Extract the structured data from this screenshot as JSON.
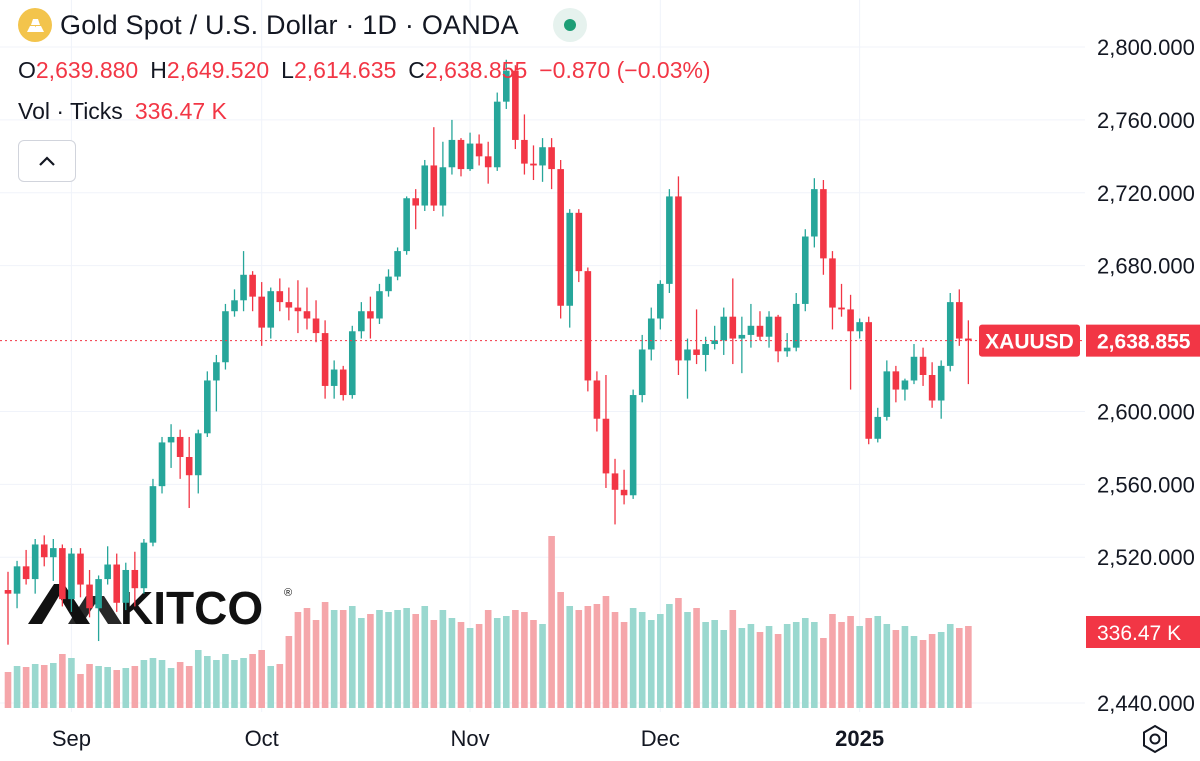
{
  "header": {
    "title": "Gold Spot / U.S. Dollar · 1D · OANDA",
    "ohlc": [
      {
        "key": "O",
        "value": "2,639.880"
      },
      {
        "key": "H",
        "value": "2,649.520"
      },
      {
        "key": "L",
        "value": "2,614.635"
      },
      {
        "key": "C",
        "value": "2,638.855"
      }
    ],
    "change": "−0.870 (−0.03%)",
    "volume_label": "Vol · Ticks",
    "volume_value": "336.47 K"
  },
  "price_label": {
    "symbol": "XAUUSD",
    "value": "2,638.855"
  },
  "volume_badge": "336.47 K",
  "watermark": "KITCO",
  "colors": {
    "up": "#26a69a",
    "down": "#f23645",
    "up_vol": "#9ad8cf",
    "down_vol": "#f5a6aa",
    "grid": "#f0f3fa",
    "text": "#131722"
  },
  "icons": {
    "collapse": "chevron-up-icon",
    "settings": "hexagon-gear-icon",
    "symbol": "gold-bars-icon",
    "market_status": "green-dot-icon"
  },
  "chart_data": {
    "type": "candlestick",
    "interval": "1D",
    "y_axis": {
      "ticks": [
        "2,800.000",
        "2,760.000",
        "2,720.000",
        "2,680.000",
        "2,600.000",
        "2,560.000",
        "2,520.000",
        "2,440.000"
      ],
      "tick_values": [
        2800,
        2760,
        2720,
        2680,
        2600,
        2560,
        2520,
        2440
      ],
      "range": [
        2435,
        2815
      ]
    },
    "x_axis": {
      "labels": [
        "Sep",
        "Oct",
        "Nov",
        "Dec",
        "2025"
      ],
      "label_bar_index": [
        7,
        28,
        51,
        72,
        94
      ]
    },
    "last_price": 2638.855,
    "candles": [
      [
        2502,
        2512,
        2472,
        2500,
        180,
        "d"
      ],
      [
        2500,
        2518,
        2492,
        2515,
        210,
        "u"
      ],
      [
        2515,
        2524,
        2505,
        2508,
        205,
        "d"
      ],
      [
        2508,
        2530,
        2500,
        2527,
        220,
        "u"
      ],
      [
        2527,
        2532,
        2515,
        2520,
        215,
        "d"
      ],
      [
        2520,
        2530,
        2507,
        2525,
        225,
        "u"
      ],
      [
        2525,
        2527,
        2493,
        2497,
        270,
        "d"
      ],
      [
        2497,
        2525,
        2490,
        2522,
        250,
        "u"
      ],
      [
        2522,
        2525,
        2498,
        2505,
        170,
        "d"
      ],
      [
        2505,
        2513,
        2487,
        2492,
        220,
        "d"
      ],
      [
        2492,
        2510,
        2474,
        2508,
        210,
        "u"
      ],
      [
        2508,
        2526,
        2505,
        2516,
        205,
        "u"
      ],
      [
        2516,
        2522,
        2490,
        2495,
        190,
        "d"
      ],
      [
        2495,
        2517,
        2491,
        2513,
        200,
        "u"
      ],
      [
        2513,
        2523,
        2493,
        2503,
        210,
        "d"
      ],
      [
        2503,
        2530,
        2500,
        2528,
        240,
        "u"
      ],
      [
        2528,
        2563,
        2526,
        2559,
        250,
        "u"
      ],
      [
        2559,
        2586,
        2555,
        2583,
        240,
        "u"
      ],
      [
        2583,
        2593,
        2569,
        2586,
        200,
        "u"
      ],
      [
        2586,
        2590,
        2563,
        2575,
        230,
        "d"
      ],
      [
        2575,
        2586,
        2547,
        2565,
        210,
        "d"
      ],
      [
        2565,
        2590,
        2555,
        2588,
        290,
        "u"
      ],
      [
        2588,
        2622,
        2586,
        2617,
        260,
        "u"
      ],
      [
        2617,
        2631,
        2600,
        2627,
        240,
        "u"
      ],
      [
        2627,
        2659,
        2623,
        2655,
        270,
        "u"
      ],
      [
        2655,
        2667,
        2652,
        2661,
        240,
        "u"
      ],
      [
        2661,
        2688,
        2655,
        2675,
        250,
        "u"
      ],
      [
        2675,
        2677,
        2655,
        2663,
        270,
        "d"
      ],
      [
        2663,
        2671,
        2636,
        2646,
        290,
        "d"
      ],
      [
        2646,
        2668,
        2640,
        2666,
        210,
        "u"
      ],
      [
        2666,
        2673,
        2655,
        2660,
        220,
        "d"
      ],
      [
        2660,
        2668,
        2650,
        2657,
        360,
        "d"
      ],
      [
        2657,
        2672,
        2643,
        2655,
        480,
        "d"
      ],
      [
        2655,
        2668,
        2645,
        2651,
        500,
        "d"
      ],
      [
        2651,
        2661,
        2638,
        2643,
        440,
        "d"
      ],
      [
        2643,
        2650,
        2607,
        2614,
        530,
        "d"
      ],
      [
        2614,
        2628,
        2607,
        2623,
        490,
        "u"
      ],
      [
        2623,
        2625,
        2606,
        2609,
        490,
        "d"
      ],
      [
        2609,
        2647,
        2607,
        2644,
        510,
        "u"
      ],
      [
        2644,
        2660,
        2640,
        2655,
        450,
        "u"
      ],
      [
        2655,
        2663,
        2640,
        2651,
        470,
        "d"
      ],
      [
        2651,
        2670,
        2648,
        2666,
        490,
        "u"
      ],
      [
        2666,
        2678,
        2663,
        2674,
        480,
        "u"
      ],
      [
        2674,
        2690,
        2672,
        2688,
        490,
        "u"
      ],
      [
        2688,
        2718,
        2686,
        2717,
        500,
        "u"
      ],
      [
        2717,
        2722,
        2700,
        2713,
        470,
        "d"
      ],
      [
        2713,
        2738,
        2710,
        2735,
        510,
        "u"
      ],
      [
        2735,
        2756,
        2710,
        2713,
        440,
        "d"
      ],
      [
        2713,
        2748,
        2707,
        2734,
        490,
        "u"
      ],
      [
        2734,
        2760,
        2730,
        2749,
        450,
        "u"
      ],
      [
        2749,
        2750,
        2729,
        2733,
        430,
        "d"
      ],
      [
        2733,
        2753,
        2732,
        2747,
        400,
        "u"
      ],
      [
        2747,
        2752,
        2735,
        2740,
        420,
        "d"
      ],
      [
        2740,
        2748,
        2725,
        2734,
        490,
        "d"
      ],
      [
        2734,
        2775,
        2732,
        2770,
        450,
        "u"
      ],
      [
        2770,
        2793,
        2766,
        2787,
        460,
        "u"
      ],
      [
        2787,
        2790,
        2744,
        2749,
        490,
        "d"
      ],
      [
        2749,
        2763,
        2730,
        2736,
        480,
        "d"
      ],
      [
        2736,
        2746,
        2727,
        2735,
        440,
        "d"
      ],
      [
        2735,
        2750,
        2726,
        2745,
        420,
        "u"
      ],
      [
        2745,
        2750,
        2722,
        2733,
        860,
        "d"
      ],
      [
        2733,
        2738,
        2651,
        2658,
        580,
        "d"
      ],
      [
        2658,
        2711,
        2646,
        2709,
        510,
        "u"
      ],
      [
        2709,
        2711,
        2671,
        2677,
        490,
        "d"
      ],
      [
        2677,
        2679,
        2611,
        2617,
        510,
        "d"
      ],
      [
        2617,
        2622,
        2589,
        2596,
        520,
        "d"
      ],
      [
        2596,
        2620,
        2558,
        2566,
        560,
        "d"
      ],
      [
        2566,
        2574,
        2538,
        2557,
        480,
        "d"
      ],
      [
        2557,
        2568,
        2549,
        2554,
        430,
        "d"
      ],
      [
        2554,
        2612,
        2552,
        2609,
        500,
        "u"
      ],
      [
        2609,
        2642,
        2605,
        2634,
        480,
        "u"
      ],
      [
        2634,
        2657,
        2628,
        2651,
        440,
        "u"
      ],
      [
        2651,
        2672,
        2645,
        2670,
        470,
        "u"
      ],
      [
        2670,
        2722,
        2665,
        2718,
        520,
        "u"
      ],
      [
        2718,
        2729,
        2620,
        2628,
        550,
        "d"
      ],
      [
        2628,
        2640,
        2607,
        2634,
        480,
        "u"
      ],
      [
        2634,
        2656,
        2626,
        2631,
        500,
        "d"
      ],
      [
        2631,
        2641,
        2622,
        2637,
        430,
        "u"
      ],
      [
        2637,
        2647,
        2634,
        2639,
        440,
        "u"
      ],
      [
        2639,
        2657,
        2631,
        2652,
        390,
        "u"
      ],
      [
        2652,
        2673,
        2626,
        2640,
        490,
        "d"
      ],
      [
        2640,
        2652,
        2621,
        2642,
        400,
        "u"
      ],
      [
        2642,
        2659,
        2635,
        2647,
        420,
        "u"
      ],
      [
        2647,
        2655,
        2639,
        2641,
        380,
        "d"
      ],
      [
        2641,
        2655,
        2635,
        2652,
        410,
        "u"
      ],
      [
        2652,
        2653,
        2627,
        2633,
        370,
        "d"
      ],
      [
        2633,
        2643,
        2630,
        2635,
        420,
        "u"
      ],
      [
        2635,
        2665,
        2633,
        2659,
        430,
        "u"
      ],
      [
        2659,
        2700,
        2655,
        2696,
        450,
        "u"
      ],
      [
        2696,
        2728,
        2690,
        2722,
        430,
        "u"
      ],
      [
        2722,
        2727,
        2675,
        2684,
        350,
        "d"
      ],
      [
        2684,
        2688,
        2645,
        2657,
        470,
        "d"
      ],
      [
        2657,
        2670,
        2652,
        2656,
        430,
        "d"
      ],
      [
        2656,
        2664,
        2612,
        2644,
        460,
        "d"
      ],
      [
        2644,
        2651,
        2640,
        2649,
        410,
        "u"
      ],
      [
        2649,
        2652,
        2582,
        2585,
        450,
        "d"
      ],
      [
        2585,
        2602,
        2583,
        2597,
        460,
        "u"
      ],
      [
        2597,
        2628,
        2595,
        2622,
        420,
        "u"
      ],
      [
        2622,
        2625,
        2605,
        2612,
        390,
        "d"
      ],
      [
        2612,
        2618,
        2606,
        2617,
        410,
        "u"
      ],
      [
        2617,
        2637,
        2615,
        2630,
        360,
        "u"
      ],
      [
        2630,
        2635,
        2614,
        2620,
        340,
        "d"
      ],
      [
        2620,
        2627,
        2602,
        2606,
        370,
        "d"
      ],
      [
        2606,
        2628,
        2596,
        2625,
        380,
        "u"
      ],
      [
        2625,
        2665,
        2622,
        2660,
        420,
        "u"
      ],
      [
        2660,
        2667,
        2636,
        2640,
        400,
        "d"
      ],
      [
        2640,
        2650,
        2615,
        2639,
        410,
        "d"
      ]
    ]
  }
}
